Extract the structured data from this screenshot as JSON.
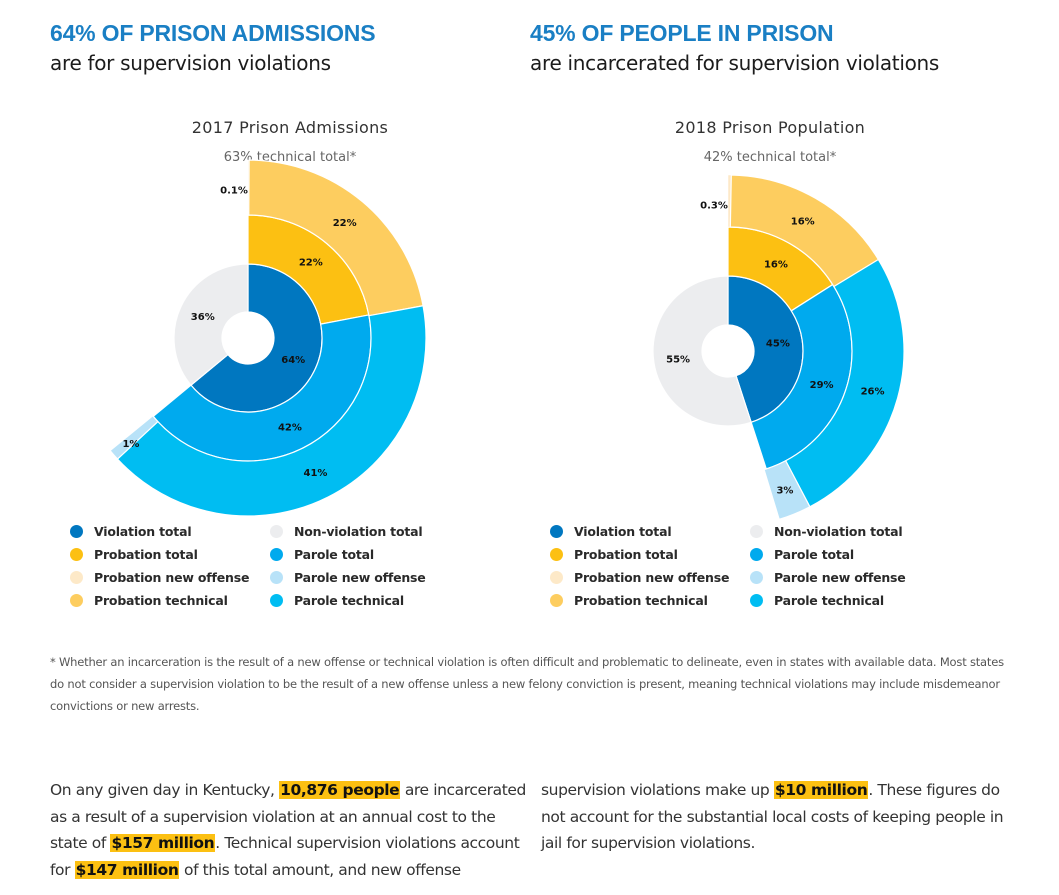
{
  "headlines": [
    {
      "big": "64% OF PRISON ADMISSIONS",
      "sub": "are for supervision violations"
    },
    {
      "big": "45% OF PEOPLE IN PRISON",
      "sub": "are incarcerated for supervision violations"
    }
  ],
  "colors": {
    "violation_total": "#0077c0",
    "non_violation_total": "#ecedef",
    "probation_total": "#fcc012",
    "parole_total": "#00aaee",
    "probation_new_offense": "#fde9c8",
    "parole_new_offense": "#b8e2f8",
    "probation_technical": "#fdcd5f",
    "parole_technical": "#00bdf2",
    "headline": "#1a7fc4",
    "highlight": "#fcc012"
  },
  "legend": [
    {
      "key": "violation_total",
      "label": "Violation total"
    },
    {
      "key": "non_violation_total",
      "label": "Non-violation total"
    },
    {
      "key": "probation_total",
      "label": "Probation total"
    },
    {
      "key": "parole_total",
      "label": "Parole total"
    },
    {
      "key": "probation_new_offense",
      "label": "Probation new offense"
    },
    {
      "key": "parole_new_offense",
      "label": "Parole new offense"
    },
    {
      "key": "probation_technical",
      "label": "Probation technical"
    },
    {
      "key": "parole_technical",
      "label": "Parole technical"
    }
  ],
  "chart_data": [
    {
      "type": "sunburst",
      "title": "2017 Prison Admissions",
      "subtitle": "63% technical total*",
      "rings": {
        "inner": [
          {
            "key": "violation_total",
            "value": 64,
            "label": "64%"
          },
          {
            "key": "non_violation_total",
            "value": 36,
            "label": "36%"
          }
        ],
        "middle": [
          {
            "key": "probation_total",
            "value": 22,
            "label": "22%"
          },
          {
            "key": "parole_total",
            "value": 42,
            "label": "42%"
          }
        ],
        "outer": [
          {
            "key": "probation_new_offense",
            "value": 0.1,
            "label": "0.1%"
          },
          {
            "key": "probation_technical",
            "value": 22,
            "label": "22%"
          },
          {
            "key": "parole_technical",
            "value": 41,
            "label": "41%"
          },
          {
            "key": "parole_new_offense",
            "value": 1,
            "label": "1%"
          }
        ]
      }
    },
    {
      "type": "sunburst",
      "title": "2018 Prison Population",
      "subtitle": "42% technical total*",
      "rings": {
        "inner": [
          {
            "key": "violation_total",
            "value": 45,
            "label": "45%"
          },
          {
            "key": "non_violation_total",
            "value": 55,
            "label": "55%"
          }
        ],
        "middle": [
          {
            "key": "probation_total",
            "value": 16,
            "label": "16%"
          },
          {
            "key": "parole_total",
            "value": 29,
            "label": "29%"
          }
        ],
        "outer": [
          {
            "key": "probation_new_offense",
            "value": 0.3,
            "label": "0.3%"
          },
          {
            "key": "probation_technical",
            "value": 16,
            "label": "16%"
          },
          {
            "key": "parole_technical",
            "value": 26,
            "label": "26%"
          },
          {
            "key": "parole_new_offense",
            "value": 3,
            "label": "3%"
          }
        ]
      }
    }
  ],
  "footnote": "* Whether an incarceration is the result of a new offense or technical violation is often difficult and problematic to delineate, even in states with available data. Most states do not consider a supervision violation to be the result of a new offense unless a new felony conviction is present, meaning technical violations may include misdemeanor convictions or new arrests.",
  "body": {
    "p1_a": "On any given day in Kentucky, ",
    "p1_hl1": "10,876 people",
    "p1_b": " are incarcerated as a result of a supervision violation at an annual cost to the state of ",
    "p1_hl2": "$157 million",
    "p1_c": ". Technical supervision violations account for ",
    "p1_hl3": "$147 million",
    "p1_d": " of this total amount, and new offense",
    "p2_a": "supervision violations make up ",
    "p2_hl1": "$10 million",
    "p2_b": ". These figures do not account for the substantial local costs of keeping people in jail for supervision violations."
  }
}
